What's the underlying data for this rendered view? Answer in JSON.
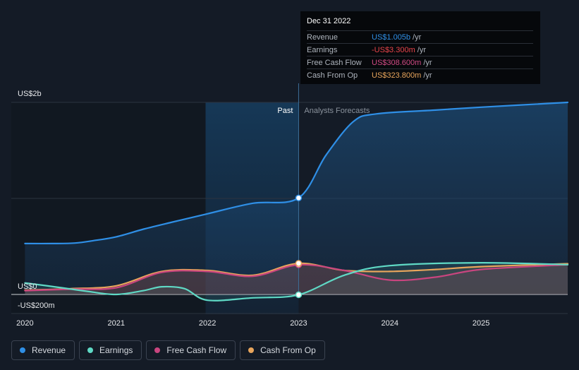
{
  "tooltip": {
    "date": "Dec 31 2022",
    "rows": [
      {
        "label": "Revenue",
        "value": "US$1.005b",
        "unit": "/yr",
        "color": "#2f8fe6"
      },
      {
        "label": "Earnings",
        "value": "-US$3.300m",
        "unit": "/yr",
        "color": "#e8444a"
      },
      {
        "label": "Free Cash Flow",
        "value": "US$308.600m",
        "unit": "/yr",
        "color": "#d14a84"
      },
      {
        "label": "Cash From Op",
        "value": "US$323.800m",
        "unit": "/yr",
        "color": "#e8a55c"
      }
    ]
  },
  "regions": {
    "past_label": "Past",
    "forecast_label": "Analysts Forecasts"
  },
  "legend": [
    {
      "label": "Revenue",
      "color": "#2f8fe6"
    },
    {
      "label": "Earnings",
      "color": "#5fd9c5"
    },
    {
      "label": "Free Cash Flow",
      "color": "#c9457f"
    },
    {
      "label": "Cash From Op",
      "color": "#e8a55c"
    }
  ],
  "chart_data": {
    "type": "line",
    "y_labels": [
      "US$2b",
      "US$0",
      "-US$200m"
    ],
    "y_ticks": [
      2000,
      0,
      -200
    ],
    "ylim": [
      -200,
      2000
    ],
    "xlim": [
      2019.85,
      2025.95
    ],
    "x_ticks": [
      2020,
      2021,
      2022,
      2023,
      2024,
      2025
    ],
    "x_tick_labels": [
      "2020",
      "2021",
      "2022",
      "2023",
      "2024",
      "2025"
    ],
    "past_start": 2021.98,
    "forecast_start": 2023.0,
    "highlight_x": 2023.0,
    "series": [
      {
        "name": "Revenue",
        "color": "#2f8fe6",
        "points": [
          [
            2020.0,
            530
          ],
          [
            2020.3,
            530
          ],
          [
            2020.55,
            535
          ],
          [
            2020.75,
            560
          ],
          [
            2021.0,
            600
          ],
          [
            2021.3,
            680
          ],
          [
            2021.6,
            750
          ],
          [
            2022.0,
            840
          ],
          [
            2022.5,
            950
          ],
          [
            2023.0,
            1005
          ],
          [
            2023.3,
            1450
          ],
          [
            2023.6,
            1800
          ],
          [
            2023.85,
            1880
          ],
          [
            2024.5,
            1920
          ],
          [
            2025.0,
            1950
          ],
          [
            2025.95,
            2000
          ]
        ]
      },
      {
        "name": "Earnings",
        "color": "#5fd9c5",
        "points": [
          [
            2020.0,
            120
          ],
          [
            2020.4,
            70
          ],
          [
            2020.7,
            30
          ],
          [
            2021.0,
            0
          ],
          [
            2021.3,
            40
          ],
          [
            2021.5,
            80
          ],
          [
            2021.75,
            60
          ],
          [
            2022.0,
            -60
          ],
          [
            2022.5,
            -35
          ],
          [
            2023.0,
            -3.3
          ],
          [
            2023.5,
            200
          ],
          [
            2024.0,
            300
          ],
          [
            2025.0,
            330
          ],
          [
            2025.95,
            310
          ]
        ]
      },
      {
        "name": "Free Cash Flow",
        "color": "#c9457f",
        "points": [
          [
            2020.0,
            40
          ],
          [
            2020.5,
            55
          ],
          [
            2021.0,
            70
          ],
          [
            2021.5,
            230
          ],
          [
            2022.0,
            240
          ],
          [
            2022.5,
            190
          ],
          [
            2023.0,
            308.6
          ],
          [
            2023.5,
            250
          ],
          [
            2024.0,
            150
          ],
          [
            2024.5,
            180
          ],
          [
            2025.0,
            260
          ],
          [
            2025.95,
            310
          ]
        ]
      },
      {
        "name": "Cash From Op",
        "color": "#e8a55c",
        "points": [
          [
            2020.0,
            45
          ],
          [
            2020.5,
            60
          ],
          [
            2021.0,
            90
          ],
          [
            2021.5,
            240
          ],
          [
            2022.0,
            250
          ],
          [
            2022.5,
            200
          ],
          [
            2023.0,
            323.8
          ],
          [
            2023.5,
            250
          ],
          [
            2024.0,
            240
          ],
          [
            2024.5,
            260
          ],
          [
            2025.0,
            290
          ],
          [
            2025.95,
            320
          ]
        ]
      }
    ]
  }
}
